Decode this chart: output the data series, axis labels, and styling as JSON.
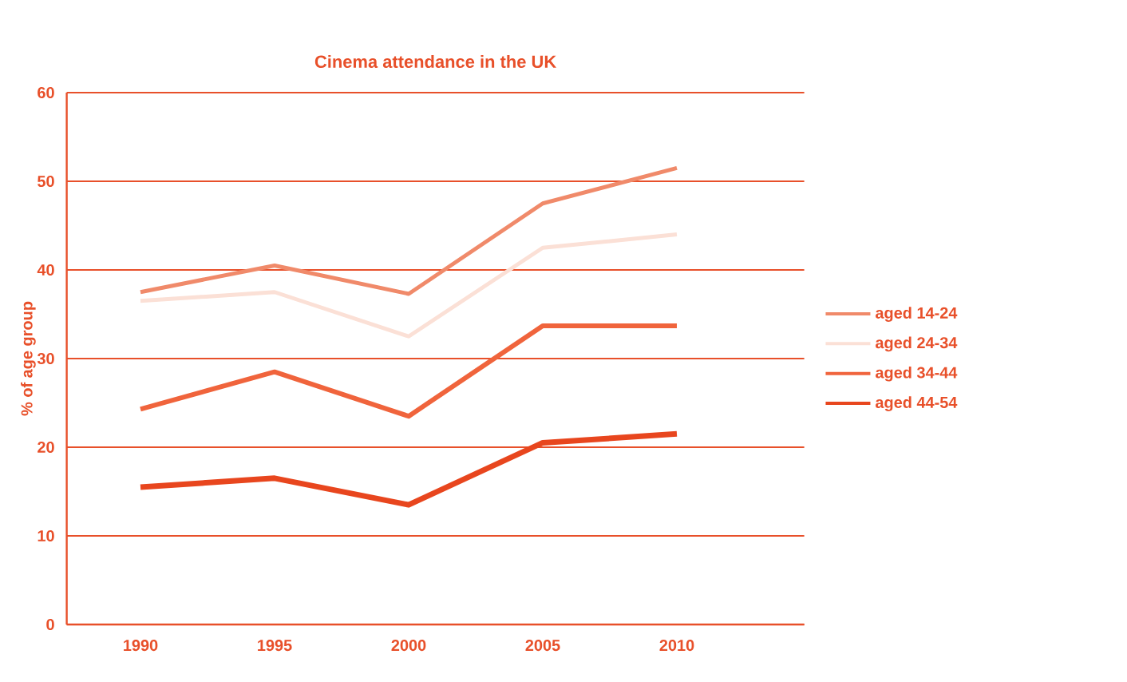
{
  "chart_data": {
    "type": "line",
    "title": "Cinema attendance in the UK",
    "ylabel": "% of age group",
    "categories": [
      "1990",
      "1995",
      "2000",
      "2005",
      "2010"
    ],
    "series": [
      {
        "name": "aged 14-24",
        "color": "#f08a6a",
        "values": [
          37.5,
          40.5,
          37.3,
          47.5,
          51.5
        ]
      },
      {
        "name": "aged 24-34",
        "color": "#fbe0d6",
        "values": [
          36.5,
          37.5,
          32.5,
          42.5,
          44
        ]
      },
      {
        "name": "aged 34-44",
        "color": "#f0643c",
        "values": [
          24.3,
          28.5,
          23.5,
          33.7,
          33.7
        ]
      },
      {
        "name": "aged 44-54",
        "color": "#e8461e",
        "values": [
          15.5,
          16.5,
          13.5,
          20.5,
          21.5
        ]
      }
    ],
    "ylim": [
      0,
      60
    ],
    "yticks": [
      0,
      10,
      20,
      30,
      40,
      50,
      60
    ],
    "grid": "y",
    "legend": "right",
    "marker": "none",
    "line_style": "solid"
  }
}
